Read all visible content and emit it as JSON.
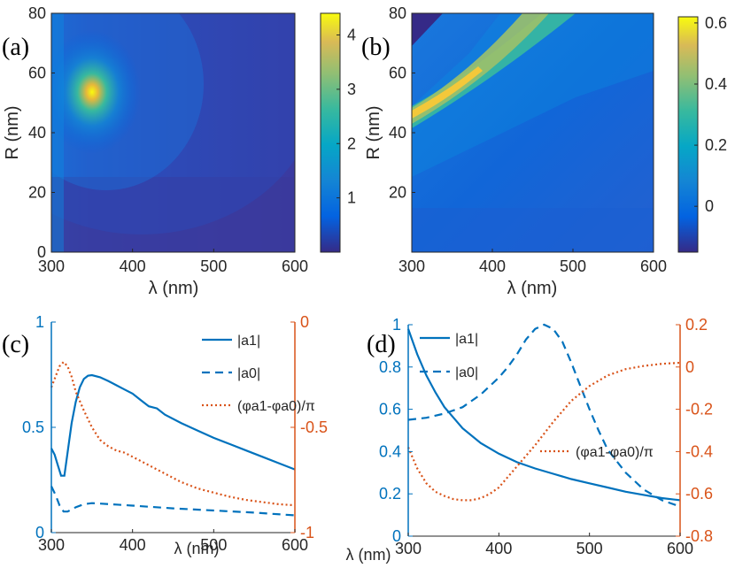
{
  "chart_data": [
    {
      "panel": "(a)",
      "type": "heatmap",
      "xlabel": "λ (nm)",
      "ylabel": "R (nm)",
      "xlim": [
        300,
        600
      ],
      "ylim": [
        0,
        80
      ],
      "xticks": [
        "300",
        "400",
        "500",
        "600"
      ],
      "yticks": [
        "0",
        "20",
        "40",
        "60",
        "80"
      ],
      "colorbar_ticks": [
        "1",
        "2",
        "3",
        "4"
      ],
      "colorbar_range": [
        0,
        4.4
      ],
      "peak": {
        "x": 348,
        "y": 54,
        "value": 4.3
      }
    },
    {
      "panel": "(b)",
      "type": "heatmap",
      "xlabel": "λ (nm)",
      "ylabel": "R (nm)",
      "xlim": [
        300,
        600
      ],
      "ylim": [
        0,
        80
      ],
      "xticks": [
        "300",
        "400",
        "500",
        "600"
      ],
      "yticks": [
        "20",
        "40",
        "60",
        "80"
      ],
      "colorbar_ticks": [
        "0",
        "0.2",
        "0.4",
        "0.6"
      ],
      "colorbar_range": [
        -0.15,
        0.62
      ],
      "ridge": [
        {
          "x": 300,
          "y": 47
        },
        {
          "x": 400,
          "y": 66
        },
        {
          "x": 480,
          "y": 80
        }
      ]
    },
    {
      "panel": "(c)",
      "type": "line",
      "xlabel": "λ (nm)",
      "xlim": [
        300,
        600
      ],
      "ylim_left": [
        0,
        1
      ],
      "ylim_right": [
        -1,
        0
      ],
      "xticks": [
        "300",
        "400",
        "500",
        "600"
      ],
      "yticks_left": [
        "0",
        "0.5",
        "1"
      ],
      "yticks_right": [
        "-1",
        "-0.5",
        "0"
      ],
      "series": [
        {
          "name": "|a1|",
          "axis": "left",
          "style": "solid",
          "x": [
            300,
            304,
            308,
            312,
            316,
            320,
            325,
            330,
            335,
            340,
            345,
            350,
            360,
            370,
            380,
            390,
            400,
            410,
            420,
            430,
            440,
            460,
            480,
            500,
            520,
            540,
            560,
            580,
            600
          ],
          "y": [
            0.4,
            0.37,
            0.32,
            0.27,
            0.27,
            0.38,
            0.52,
            0.62,
            0.69,
            0.73,
            0.745,
            0.748,
            0.738,
            0.72,
            0.7,
            0.68,
            0.66,
            0.63,
            0.6,
            0.59,
            0.56,
            0.52,
            0.485,
            0.45,
            0.42,
            0.39,
            0.36,
            0.33,
            0.3
          ]
        },
        {
          "name": "|a0|",
          "axis": "left",
          "style": "dashed",
          "x": [
            300,
            305,
            310,
            315,
            320,
            325,
            330,
            340,
            350,
            360,
            380,
            400,
            450,
            500,
            550,
            600
          ],
          "y": [
            0.22,
            0.18,
            0.13,
            0.1,
            0.1,
            0.11,
            0.12,
            0.135,
            0.14,
            0.138,
            0.133,
            0.128,
            0.115,
            0.105,
            0.095,
            0.082
          ]
        },
        {
          "name": "(φa1-φa0)/π",
          "axis": "right",
          "style": "dotted",
          "x": [
            300,
            305,
            310,
            315,
            320,
            325,
            330,
            340,
            350,
            360,
            370,
            380,
            390,
            400,
            420,
            440,
            460,
            480,
            500,
            520,
            540,
            560,
            580,
            600
          ],
          "y": [
            -0.31,
            -0.26,
            -0.21,
            -0.19,
            -0.21,
            -0.26,
            -0.33,
            -0.42,
            -0.5,
            -0.56,
            -0.59,
            -0.61,
            -0.62,
            -0.64,
            -0.68,
            -0.72,
            -0.76,
            -0.79,
            -0.81,
            -0.83,
            -0.845,
            -0.855,
            -0.865,
            -0.87
          ]
        }
      ],
      "legend": [
        "|a1|",
        "|a0|",
        "(φa1-φa0)/π"
      ]
    },
    {
      "panel": "(d)",
      "type": "line",
      "xlabel": "λ (nm)",
      "xlim": [
        300,
        600
      ],
      "ylim_left": [
        0,
        1
      ],
      "ylim_right": [
        -0.8,
        0.2
      ],
      "xticks": [
        "300",
        "400",
        "500",
        "600"
      ],
      "yticks_left": [
        "0",
        "0.2",
        "0.4",
        "0.6",
        "0.8",
        "1"
      ],
      "yticks_right": [
        "-0.8",
        "-0.6",
        "-0.4",
        "-0.2",
        "0",
        "0.2"
      ],
      "series": [
        {
          "name": "|a1|",
          "axis": "left",
          "style": "solid",
          "x": [
            300,
            310,
            320,
            330,
            340,
            350,
            360,
            380,
            400,
            420,
            440,
            460,
            480,
            500,
            520,
            540,
            560,
            580,
            600
          ],
          "y": [
            0.98,
            0.86,
            0.76,
            0.68,
            0.61,
            0.56,
            0.51,
            0.44,
            0.39,
            0.35,
            0.32,
            0.295,
            0.27,
            0.25,
            0.23,
            0.21,
            0.195,
            0.18,
            0.17
          ]
        },
        {
          "name": "|a0|",
          "axis": "left",
          "style": "dashed",
          "x": [
            300,
            320,
            340,
            360,
            380,
            400,
            410,
            420,
            430,
            440,
            450,
            460,
            470,
            480,
            490,
            500,
            510,
            520,
            540,
            560,
            580,
            600
          ],
          "y": [
            0.55,
            0.56,
            0.58,
            0.61,
            0.67,
            0.75,
            0.8,
            0.86,
            0.93,
            0.98,
            1.0,
            0.98,
            0.92,
            0.82,
            0.71,
            0.6,
            0.5,
            0.41,
            0.3,
            0.22,
            0.17,
            0.14
          ]
        },
        {
          "name": "(φa1-φa0)/π",
          "axis": "right",
          "style": "dotted",
          "x": [
            300,
            310,
            320,
            330,
            340,
            350,
            360,
            370,
            380,
            390,
            400,
            420,
            440,
            460,
            480,
            500,
            520,
            540,
            560,
            580,
            600
          ],
          "y": [
            -0.38,
            -0.48,
            -0.55,
            -0.59,
            -0.61,
            -0.625,
            -0.63,
            -0.63,
            -0.62,
            -0.6,
            -0.57,
            -0.47,
            -0.37,
            -0.26,
            -0.16,
            -0.09,
            -0.04,
            -0.01,
            0.005,
            0.015,
            0.02
          ]
        }
      ],
      "legend": [
        "|a1|",
        "|a0|",
        "(φa1-φa0)/π"
      ]
    }
  ],
  "labels": {
    "panel_a": "(a)",
    "panel_b": "(b)",
    "panel_c": "(c)",
    "panel_d": "(d)",
    "xlabel": "λ (nm)",
    "ylabel_R": "R (nm)"
  },
  "colors": {
    "blue": "#0072BD",
    "orange": "#D95319",
    "dark_base": "#3a3a9a"
  }
}
